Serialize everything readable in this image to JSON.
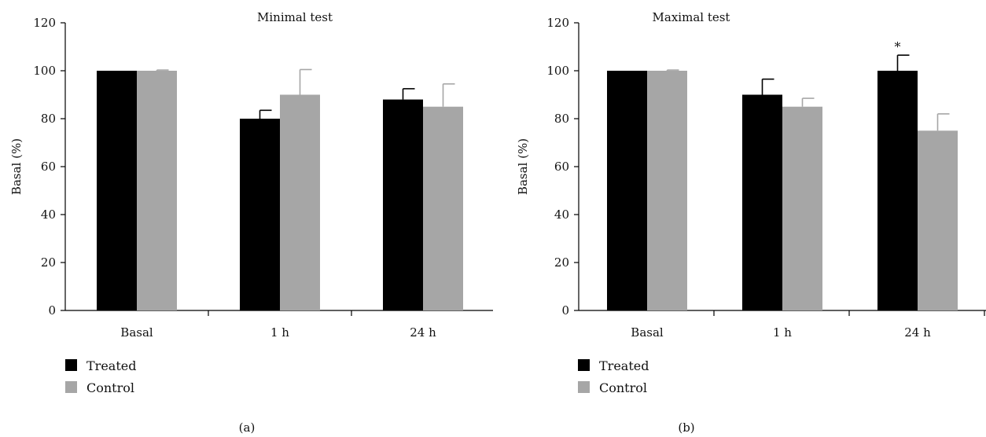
{
  "chart_data": [
    {
      "type": "bar",
      "panel_label": "(a)",
      "title": "Minimal test",
      "xlabel": "",
      "ylabel": "Basal (%)",
      "ylim": [
        0,
        120
      ],
      "yticks": [
        0,
        20,
        40,
        60,
        80,
        100,
        120
      ],
      "categories": [
        "Basal",
        "1 h",
        "24 h"
      ],
      "grid": false,
      "legend_position": "bottom-left",
      "series": [
        {
          "name": "Treated",
          "color": "#000000",
          "values": [
            100,
            80,
            88
          ],
          "errors": [
            0,
            3.5,
            4.5
          ]
        },
        {
          "name": "Control",
          "color": "#a6a6a6",
          "values": [
            100,
            90,
            85
          ],
          "errors": [
            0.3,
            10.5,
            9.5
          ]
        }
      ],
      "annotations": []
    },
    {
      "type": "bar",
      "panel_label": "(b)",
      "title": "Maximal test",
      "xlabel": "",
      "ylabel": "Basal (%)",
      "ylim": [
        0,
        120
      ],
      "yticks": [
        0,
        20,
        40,
        60,
        80,
        100,
        120
      ],
      "categories": [
        "Basal",
        "1 h",
        "24 h"
      ],
      "grid": false,
      "legend_position": "bottom-left",
      "series": [
        {
          "name": "Treated",
          "color": "#000000",
          "values": [
            100,
            90,
            100
          ],
          "errors": [
            0,
            6.5,
            6.5
          ]
        },
        {
          "name": "Control",
          "color": "#a6a6a6",
          "values": [
            100,
            85,
            75
          ],
          "errors": [
            0.3,
            3.5,
            7
          ]
        }
      ],
      "annotations": [
        {
          "text": "*",
          "category": "24 h",
          "series": "Treated"
        }
      ]
    }
  ]
}
